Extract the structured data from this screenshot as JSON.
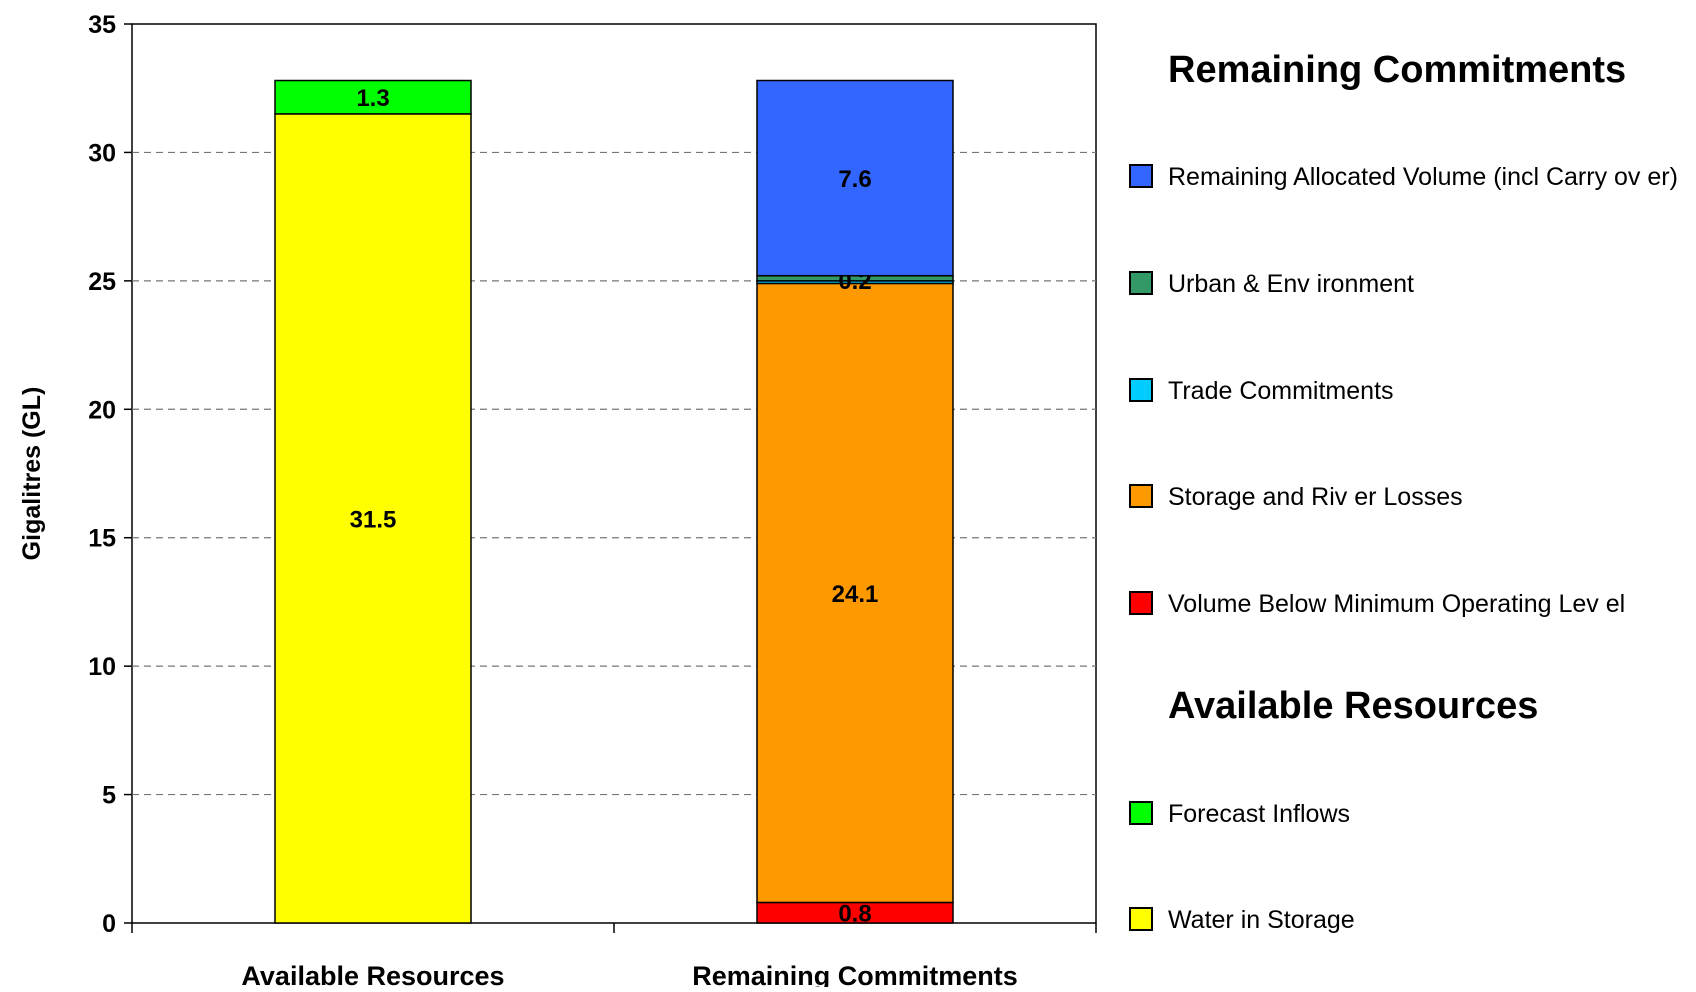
{
  "chart_data": {
    "type": "bar",
    "stacked": true,
    "ylabel": "Gigalitres (GL)",
    "xlabel": "",
    "ylim": [
      0,
      35
    ],
    "yticks": [
      0,
      5,
      10,
      15,
      20,
      25,
      30,
      35
    ],
    "grid": "horizontal-dashed",
    "categories": [
      "Available Resources",
      "Remaining Commitments"
    ],
    "series": [
      {
        "name": "Water in Storage",
        "color": "#ffff00",
        "values": [
          31.5,
          0
        ]
      },
      {
        "name": "Forecast Inflows",
        "color": "#00ff00",
        "values": [
          1.3,
          0
        ]
      },
      {
        "name": "Volume Below  Minimum  Operating Lev el",
        "color": "#ff0000",
        "values": [
          0,
          0.8
        ]
      },
      {
        "name": "Storage and Riv er Losses",
        "color": "#ff9900",
        "values": [
          0,
          24.1
        ]
      },
      {
        "name": "Trade Commitments",
        "color": "#00ccff",
        "values": [
          0,
          0.1
        ]
      },
      {
        "name": "Urban & Env ironment",
        "color": "#339966",
        "values": [
          0,
          0.2
        ]
      },
      {
        "name": "Remaining Allocated Volume (incl Carry ov er)",
        "color": "#3366ff",
        "values": [
          0,
          7.6
        ]
      }
    ],
    "data_labels": [
      [
        "31.5",
        ""
      ],
      [
        "1.3",
        ""
      ],
      [
        "",
        "0.8"
      ],
      [
        "",
        "24.1"
      ],
      [
        "",
        "0.1"
      ],
      [
        "",
        "0.2"
      ],
      [
        "",
        "7.6"
      ]
    ],
    "legend": {
      "placement": "right",
      "groups": [
        {
          "heading": "Remaining Commitments",
          "items": [
            {
              "label": "Remaining Allocated Volume (incl Carry ov er)",
              "color": "#3366ff"
            },
            {
              "label": "Urban & Env ironment",
              "color": "#339966"
            },
            {
              "label": "Trade Commitments",
              "color": "#00ccff"
            },
            {
              "label": "Storage and Riv er Losses",
              "color": "#ff9900"
            },
            {
              "label": "Volume Below  Minimum  Operating Lev el",
              "color": "#ff0000"
            }
          ]
        },
        {
          "heading": "Available Resources",
          "items": [
            {
              "label": "Forecast Inflows",
              "color": "#00ff00"
            },
            {
              "label": "Water in Storage",
              "color": "#ffff00"
            }
          ]
        }
      ]
    }
  }
}
